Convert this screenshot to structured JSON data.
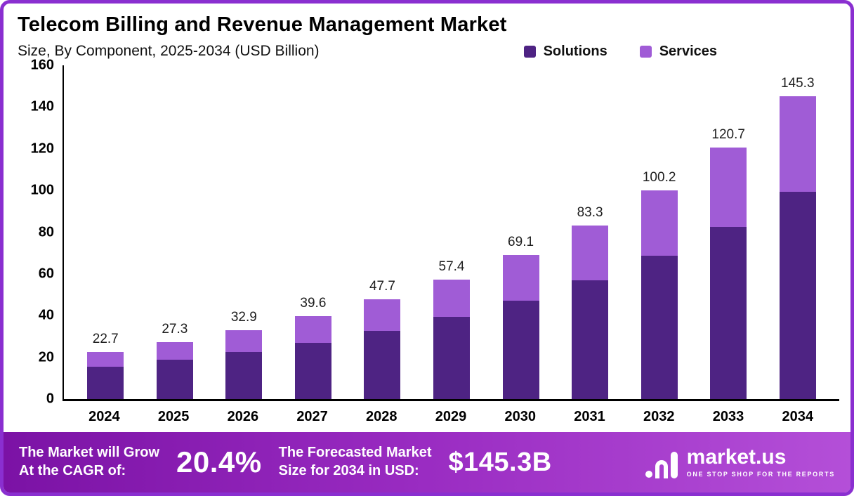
{
  "header": {
    "title": "Telecom Billing and Revenue Management Market",
    "subtitle": "Size, By Component, 2025-2034 (USD Billion)"
  },
  "legend": [
    {
      "label": "Solutions",
      "color": "#4e2383"
    },
    {
      "label": "Services",
      "color": "#a05cd6"
    }
  ],
  "chart_data": {
    "type": "bar",
    "stacked": true,
    "title": "Telecom Billing and Revenue Management Market Size, By Component, 2025-2034 (USD Billion)",
    "categories": [
      "2024",
      "2025",
      "2026",
      "2027",
      "2028",
      "2029",
      "2030",
      "2031",
      "2032",
      "2033",
      "2034"
    ],
    "series": [
      {
        "name": "Solutions",
        "color": "#4e2383",
        "values": [
          15.6,
          18.7,
          22.5,
          27.1,
          32.6,
          39.3,
          47.3,
          57.0,
          68.6,
          82.6,
          99.4
        ]
      },
      {
        "name": "Services",
        "color": "#a05cd6",
        "values": [
          7.1,
          8.6,
          10.4,
          12.5,
          15.1,
          18.1,
          21.8,
          26.3,
          31.6,
          38.1,
          45.9
        ]
      }
    ],
    "totals": [
      22.7,
      27.3,
      32.9,
      39.6,
      47.7,
      57.4,
      69.1,
      83.3,
      100.2,
      120.7,
      145.3
    ],
    "xlabel": "",
    "ylabel": "",
    "ylim": [
      0,
      160
    ],
    "yticks": [
      0,
      20,
      40,
      60,
      80,
      100,
      120,
      140,
      160
    ],
    "grid": false,
    "legend_position": "top-right"
  },
  "footer": {
    "cagr_label": "The Market will Grow\nAt the CAGR of:",
    "cagr_value": "20.4%",
    "forecast_label": "The Forecasted Market\nSize for 2034 in USD:",
    "forecast_value": "$145.3B",
    "brand_name": "market.us",
    "brand_tagline": "ONE STOP SHOP FOR THE REPORTS"
  }
}
